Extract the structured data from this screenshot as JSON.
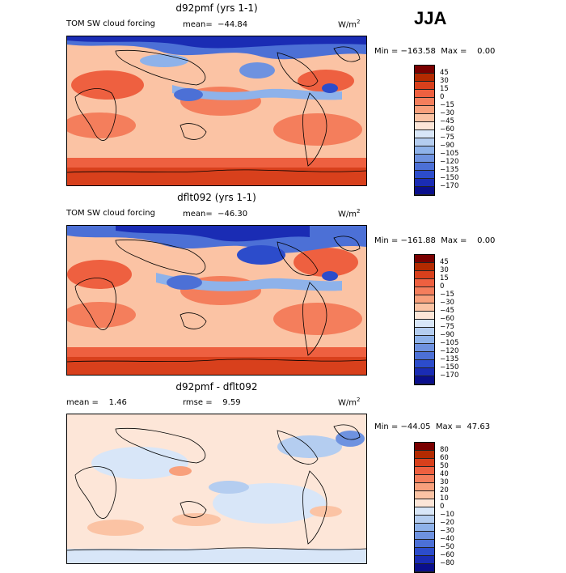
{
  "season": "JJA",
  "units_label": "W/m",
  "units_sup": "2",
  "palettes": {
    "forcing": [
      "#7a0000",
      "#b32a00",
      "#d8401c",
      "#ee6040",
      "#f47e5c",
      "#f8a07c",
      "#fbc3a4",
      "#fde6d8",
      "#d8e6f8",
      "#b4cdf0",
      "#8eb2ea",
      "#6e92e0",
      "#4c70d6",
      "#2c4ccb",
      "#1a2cb4",
      "#0a0f8c"
    ],
    "diff": [
      "#7a0000",
      "#b32a00",
      "#d8401c",
      "#ee6040",
      "#f47e5c",
      "#f8a07c",
      "#fbc3a4",
      "#fde6d8",
      "#d8e6f8",
      "#b4cdf0",
      "#8eb2ea",
      "#6e92e0",
      "#4c70d6",
      "#2c4ccb",
      "#1a2cb4",
      "#0a0f8c"
    ]
  },
  "panel1": {
    "title": "d92pmf (yrs 1-1)",
    "variable": "TOM SW cloud forcing",
    "mean": "mean=  −44.84",
    "minmax": "Min = −163.58  Max =    0.00",
    "levels": [
      "45",
      "30",
      "15",
      "0",
      "−15",
      "−30",
      "−45",
      "−60",
      "−75",
      "−90",
      "−105",
      "−120",
      "−135",
      "−150",
      "−170"
    ]
  },
  "panel2": {
    "title": "dflt092 (yrs 1-1)",
    "variable": "TOM SW cloud forcing",
    "mean": "mean=  −46.30",
    "minmax": "Min = −161.88  Max =    0.00",
    "levels": [
      "45",
      "30",
      "15",
      "0",
      "−15",
      "−30",
      "−45",
      "−60",
      "−75",
      "−90",
      "−105",
      "−120",
      "−135",
      "−150",
      "−170"
    ]
  },
  "panel3": {
    "title": "d92pmf - dflt092",
    "mean": "mean =    1.46",
    "rmse": "rmse =    9.59",
    "minmax": "Min = −44.05  Max =  47.63",
    "levels": [
      "80",
      "60",
      "50",
      "40",
      "30",
      "20",
      "10",
      "0",
      "−10",
      "−20",
      "−30",
      "−40",
      "−50",
      "−60",
      "−80"
    ]
  }
}
